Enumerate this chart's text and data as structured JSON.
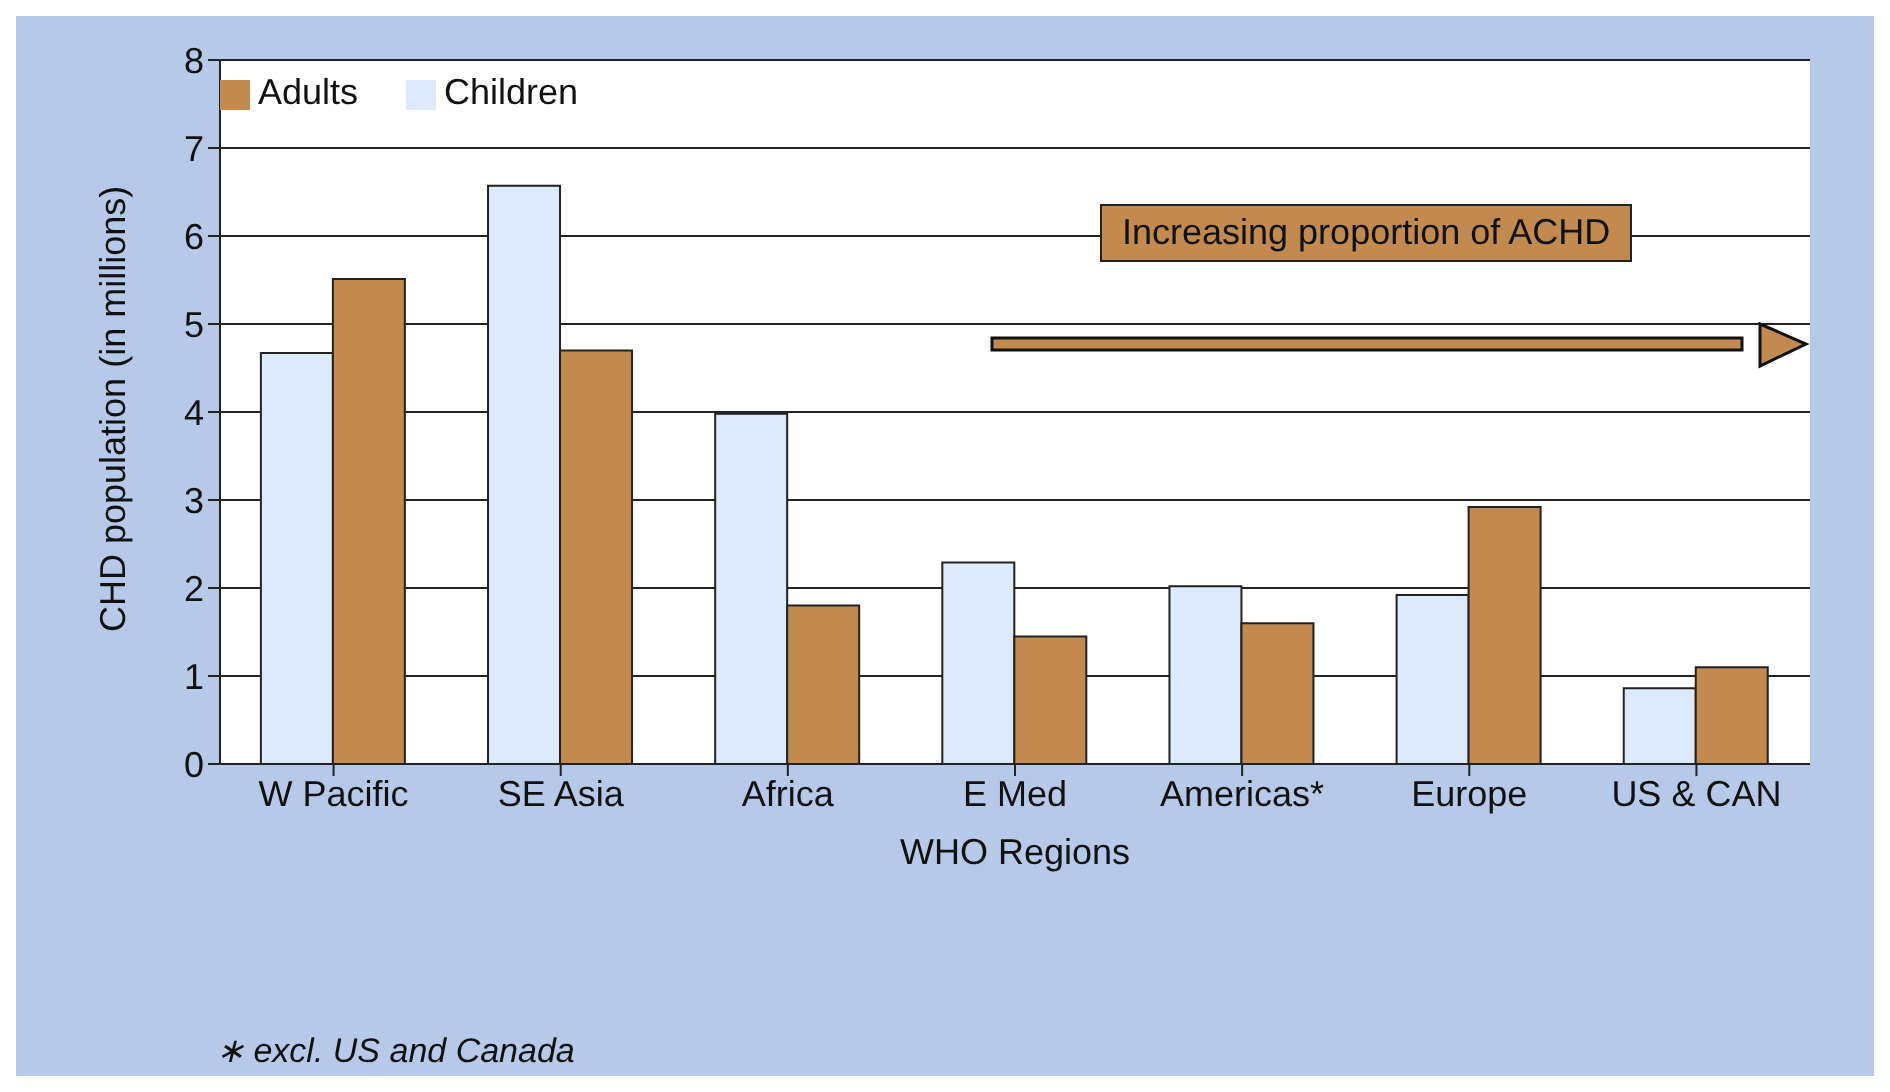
{
  "chart_data": {
    "type": "bar",
    "xlabel": "WHO Regions",
    "ylabel": "CHD population (in millions)",
    "categories": [
      "W Pacific",
      "SE Asia",
      "Africa",
      "E Med",
      "Americas*",
      "Europe",
      "US & CAN"
    ],
    "series": [
      {
        "name": "Children",
        "color": "#ddeafb",
        "values": [
          4.67,
          6.57,
          3.98,
          2.29,
          2.02,
          1.92,
          0.86
        ]
      },
      {
        "name": "Adults",
        "color": "#c28a4e",
        "values": [
          5.51,
          4.7,
          1.8,
          1.45,
          1.6,
          2.92,
          1.1
        ]
      }
    ],
    "ylim": [
      0,
      8
    ],
    "yticks": [
      0,
      1,
      2,
      3,
      4,
      5,
      6,
      7,
      8
    ],
    "grid": "y",
    "legend": "top left",
    "annotations": [
      "Increasing proportion of ACHD",
      "∗ excl. US and Canada"
    ]
  }
}
